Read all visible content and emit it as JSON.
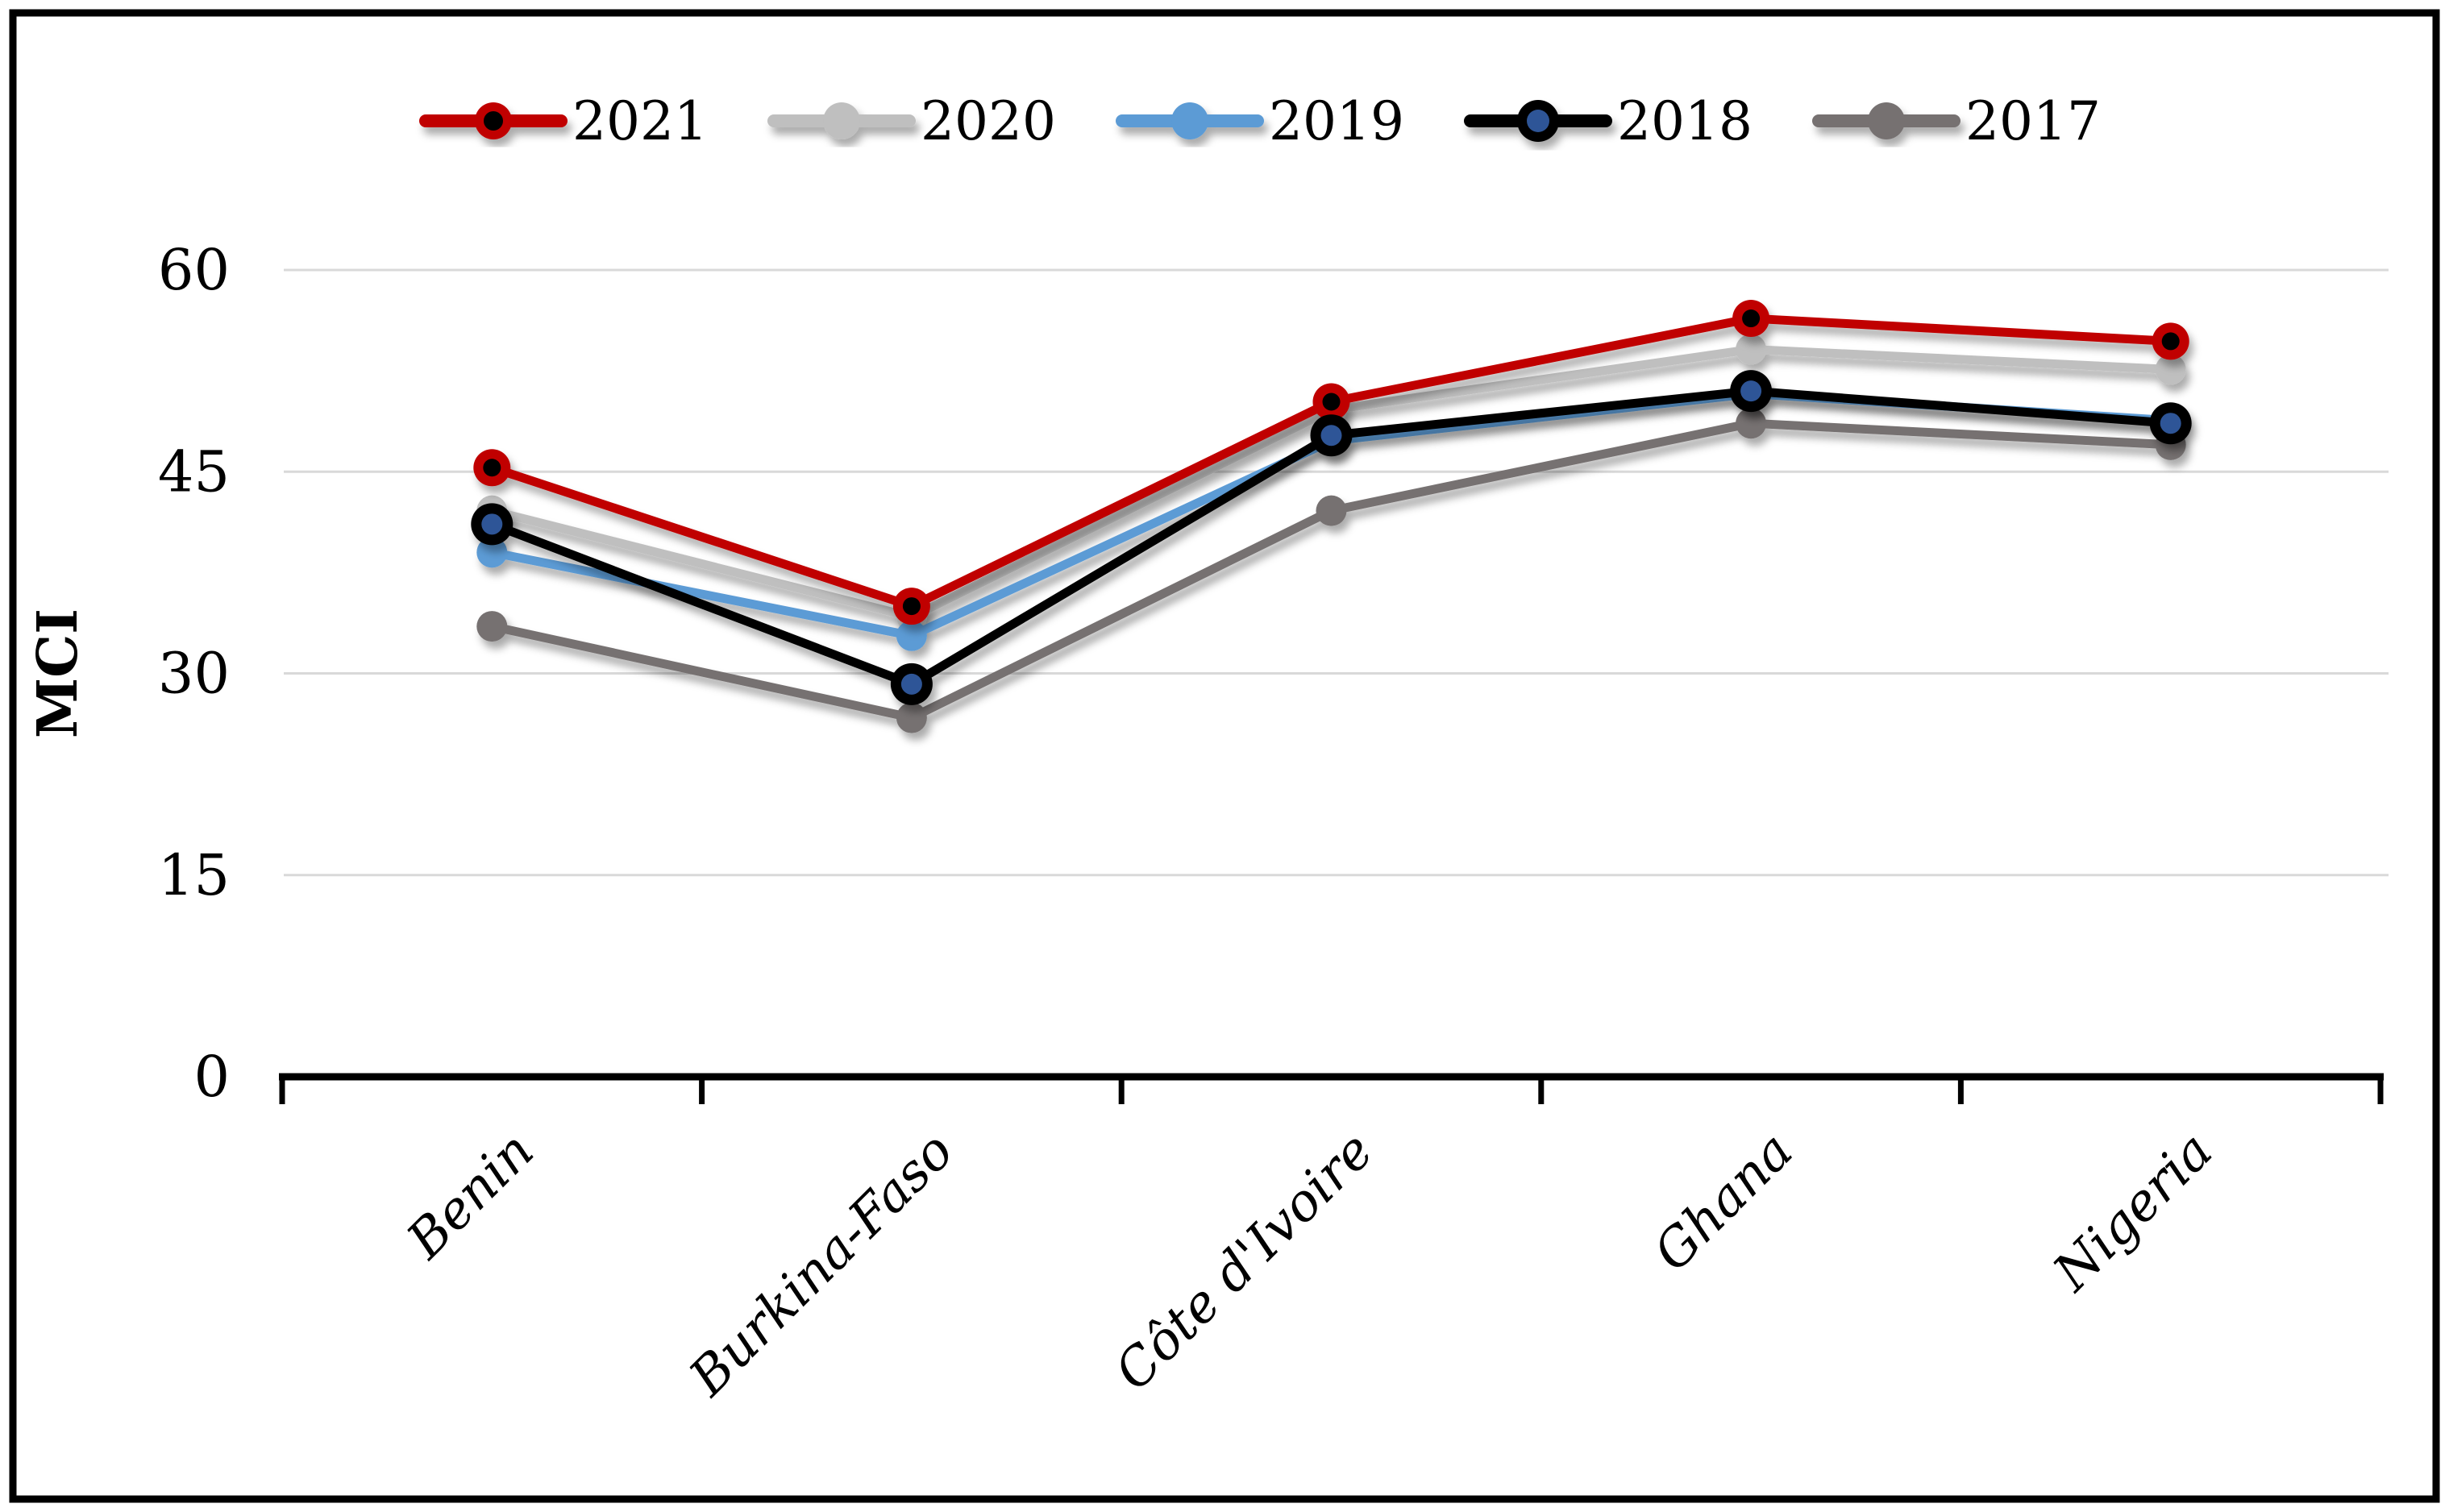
{
  "chart_data": {
    "type": "line",
    "title": "",
    "xlabel": "",
    "ylabel": "MCI",
    "ylim": [
      0,
      60
    ],
    "yticks": [
      0,
      15,
      30,
      45,
      60
    ],
    "grid": "horizontal",
    "legend_position": "top",
    "categories": [
      "Benin",
      "Burkina-Faso",
      "Côte d'Ivoire",
      "Ghana",
      "Nigeria"
    ],
    "series": [
      {
        "name": "2021",
        "color": "#c00000",
        "core": "#000000",
        "values": [
          45.3,
          35.0,
          50.2,
          56.4,
          54.7
        ]
      },
      {
        "name": "2020",
        "color": "#bfbfbf",
        "core": null,
        "values": [
          42.1,
          34.2,
          49.6,
          54.1,
          52.6
        ]
      },
      {
        "name": "2019",
        "color": "#5b9bd5",
        "core": null,
        "values": [
          39.0,
          32.8,
          47.3,
          50.8,
          48.8
        ]
      },
      {
        "name": "2018",
        "color": "#000000",
        "core": "#2f5597",
        "values": [
          41.1,
          29.2,
          47.7,
          51.0,
          48.6
        ]
      },
      {
        "name": "2017",
        "color": "#767171",
        "core": null,
        "values": [
          33.5,
          26.7,
          42.1,
          48.6,
          47.0
        ]
      }
    ],
    "draw_order": [
      "2017",
      "2020",
      "2019",
      "2021",
      "2018"
    ],
    "colors": {
      "background": "#ffffff",
      "border": "#000000",
      "axis": "#000000",
      "gridline": "#d9d9d9",
      "tick_label": "#000000",
      "legend_label": "#000000"
    }
  }
}
